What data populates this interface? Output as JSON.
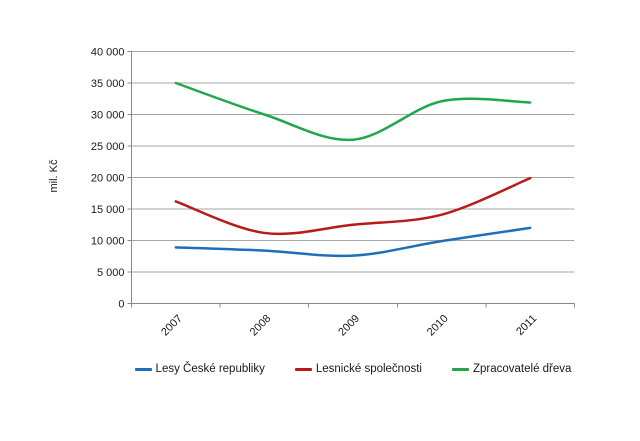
{
  "chart_data": {
    "type": "line",
    "smooth": true,
    "title": "",
    "xlabel": "",
    "ylabel": "mil. Kč",
    "categories": [
      "2007",
      "2008",
      "2009",
      "2010",
      "2011"
    ],
    "series": [
      {
        "name": "Lesy České republiky",
        "color": "#1F6FB8",
        "values": [
          8900,
          8400,
          7600,
          9900,
          12000
        ]
      },
      {
        "name": "Lesnické společnosti",
        "color": "#B81A17",
        "values": [
          16200,
          11200,
          12500,
          14100,
          19900
        ]
      },
      {
        "name": "Zpracovatelé dřeva",
        "color": "#22A64D",
        "values": [
          35000,
          30000,
          26000,
          32100,
          31900
        ]
      }
    ],
    "ylim": [
      0,
      40000
    ],
    "y_tick_step": 5000,
    "y_tick_labels": [
      "0",
      "5 000",
      "10 000",
      "15 000",
      "20 000",
      "25 000",
      "30 000",
      "35 000",
      "40 000"
    ],
    "grid": true,
    "legend_position": "bottom"
  },
  "colors": {
    "background": "#FFFFFF",
    "gridline": "#A6A6A6",
    "axis": "#898989",
    "text": "#1A1A1A"
  }
}
